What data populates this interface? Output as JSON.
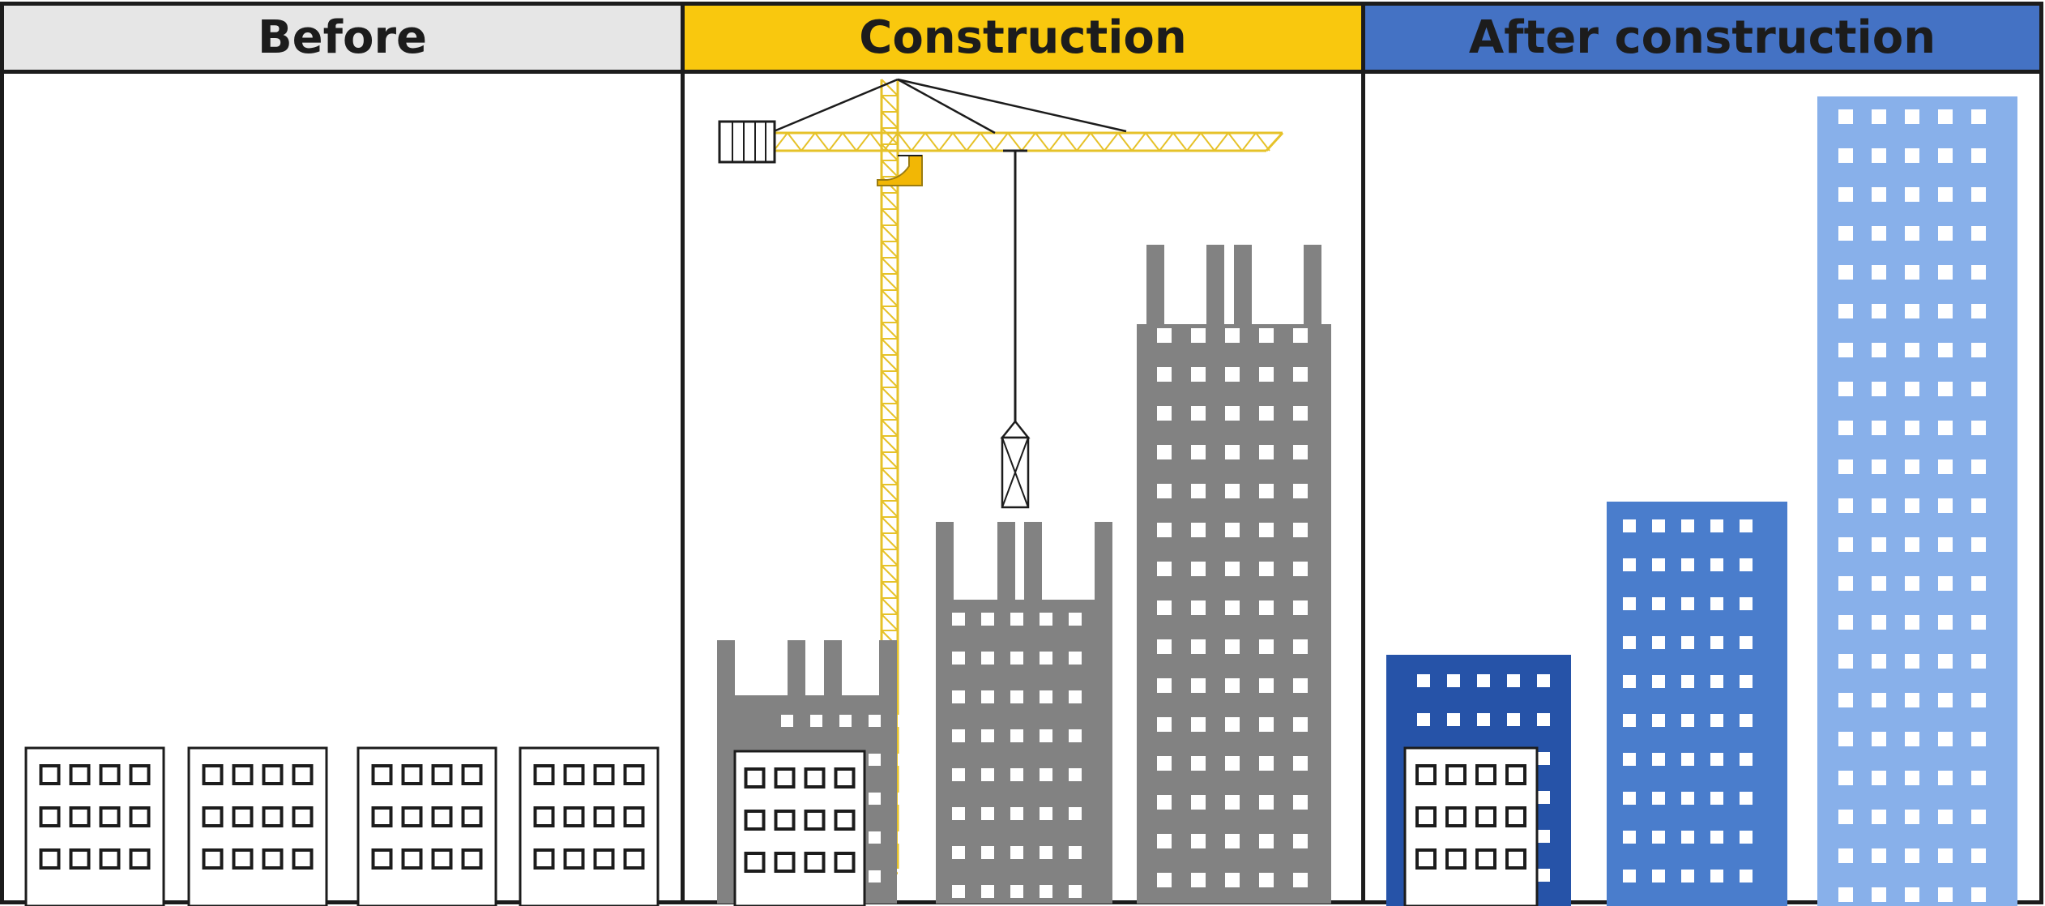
{
  "panels": [
    {
      "id": "before",
      "label": "Before",
      "header_color": "#e6e6e6"
    },
    {
      "id": "construction",
      "label": "Construction",
      "header_color": "#f9c80e"
    },
    {
      "id": "after",
      "label": "After construction",
      "header_color": "#4472c4"
    }
  ],
  "colors": {
    "outline": "#1c1c1c",
    "crane": "#e6c229",
    "crane_cab": "#f2b705",
    "unfinished_building": "#828282",
    "window": "#ffffff",
    "after_building_dark": "#2653a8",
    "after_building_mid": "#4a7dcc",
    "after_building_light": "#88b0ea"
  }
}
